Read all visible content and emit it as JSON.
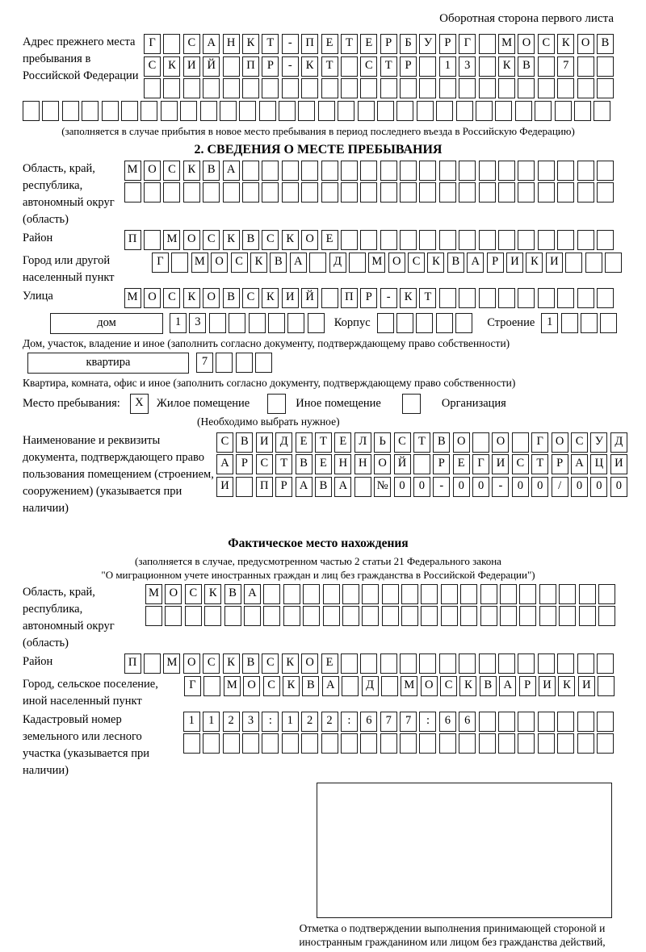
{
  "header": {
    "note": "Оборотная сторона первого листа"
  },
  "prev_address": {
    "label": "Адрес прежнего места пребывания в Российской Федерации",
    "rows": [
      {
        "text": "Г САНКТ-ПЕТЕРБУРГ МОСКОВ",
        "len": 24
      },
      {
        "text": "СКИЙ ПР-КТ СТР 13 КВ 7",
        "len": 24
      },
      {
        "text": "",
        "len": 24
      }
    ],
    "row_full": {
      "text": "",
      "len": 30
    },
    "note": "(заполняется в случае прибытия в новое место пребывания в период последнего въезда в Российскую Федерацию)"
  },
  "section2": {
    "title": "2. СВЕДЕНИЯ О МЕСТЕ ПРЕБЫВАНИЯ",
    "region": {
      "label": "Область, край, республика, автономный округ (область)",
      "rows": [
        {
          "text": "МОСКВА",
          "len": 25
        },
        {
          "text": "",
          "len": 25
        }
      ]
    },
    "district": {
      "label": "Район",
      "row": {
        "text": "П МОСКВСКОЕ",
        "len": 25
      }
    },
    "city": {
      "label": "Город или другой населенный пункт",
      "row": {
        "text": "Г МОСКВА Д МОСКВАРИКИ",
        "len": 24
      }
    },
    "street": {
      "label": "Улица",
      "row": {
        "text": "МОСКОВСКИЙ ПР-КТ",
        "len": 25
      }
    },
    "house": {
      "box_label": "дом",
      "cells": {
        "text": "13",
        "len": 8
      },
      "korpus_label": "Корпус",
      "korpus_cells": {
        "text": "",
        "len": 5
      },
      "stroenie_label": "Строение",
      "stroenie_cells": {
        "text": "1",
        "len": 4
      },
      "note": "Дом, участок, владение и иное (заполнить согласно документу, подтверждающему право собственности)"
    },
    "apartment": {
      "box_label": "квартира",
      "cells": {
        "text": "7",
        "len": 4
      },
      "note": "Квартира, комната, офис и иное (заполнить согласно документу, подтверждающему право собственности)"
    },
    "residence": {
      "label": "Место пребывания:",
      "options": [
        {
          "label": "Жилое помещение",
          "value": "X"
        },
        {
          "label": "Иное помещение",
          "value": ""
        },
        {
          "label": "Организация",
          "value": ""
        }
      ],
      "note": "(Необходимо выбрать нужное)"
    },
    "document": {
      "label": "Наименование и реквизиты документа, подтверждающего право пользования помещением (строением, сооружением) (указывается при наличии)",
      "rows": [
        {
          "text": "СВИДЕТЕЛЬСТВО О ГОСУД",
          "len": 21
        },
        {
          "text": "АРСТВЕННОЙ РЕГИСТРАЦИ",
          "len": 21
        },
        {
          "text": "И ПРАВА №00-00-00/000",
          "len": 21
        }
      ]
    }
  },
  "section3": {
    "title": "Фактическое место нахождения",
    "note_line1": "(заполняется в случае, предусмотренном частью 2 статьи 21 Федерального закона",
    "note_line2": "\"О миграционном учете иностранных граждан и лиц без гражданства в Российской Федерации\")",
    "region": {
      "label": "Область, край, республика, автономный округ (область)",
      "rows": [
        {
          "text": "МОСКВА",
          "len": 24
        },
        {
          "text": "",
          "len": 24
        }
      ]
    },
    "district": {
      "label": "Район",
      "row": {
        "text": "П МОСКВСКОЕ",
        "len": 25
      }
    },
    "city": {
      "label": "Город, сельское поселение, иной населенный пункт",
      "row": {
        "text": "Г МОСКВА Д МОСКВАРИКИ",
        "len": 22
      }
    },
    "cadastre": {
      "label": "Кадастровый номер земельного или лесного участка (указывается при наличии)",
      "rows": [
        {
          "text": "1123:122:677:66",
          "len": 22
        },
        {
          "text": "",
          "len": 22
        }
      ]
    },
    "stamp": {
      "caption": "Отметка о подтверждении выполнения принимающей стороной и иностранным гражданином или лицом без гражданства действий, необходимых для его постановки на учет по месту пребывания"
    }
  }
}
